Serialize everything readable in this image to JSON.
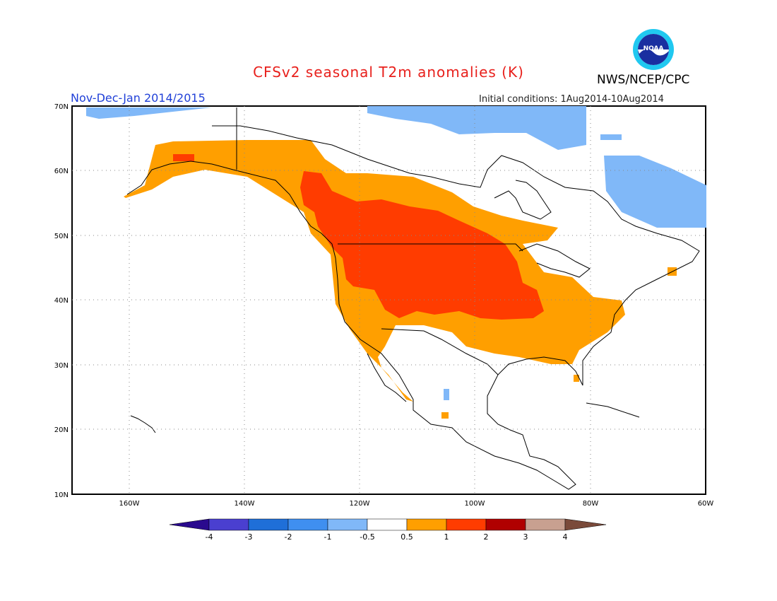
{
  "title": "CFSv2 seasonal T2m anomalies (K)",
  "period": "Nov-Dec-Jan 2014/2015",
  "initial_conditions": "Initial conditions: 1Aug2014-10Aug2014",
  "agency": "NWS/NCEP/CPC",
  "logo_text": "NOAA",
  "map": {
    "lat_labels": [
      "70N",
      "60N",
      "50N",
      "40N",
      "30N",
      "20N",
      "10N"
    ],
    "lon_labels": [
      "160W",
      "140W",
      "120W",
      "100W",
      "80W",
      "60W"
    ],
    "lon_range": [
      -170,
      -60
    ],
    "lat_range": [
      10,
      70
    ]
  },
  "legend": {
    "colors": [
      "#2a0a8e",
      "#4a3fd0",
      "#1f6fd8",
      "#3f8ff0",
      "#80b8f8",
      "#ffffff",
      "#ff9f00",
      "#ff3c00",
      "#b00000",
      "#c8a090",
      "#7a4a3a"
    ],
    "labels": [
      "-4",
      "-3",
      "-2",
      "-1",
      "-0.5",
      "0.5",
      "1",
      "2",
      "3",
      "4"
    ]
  }
}
